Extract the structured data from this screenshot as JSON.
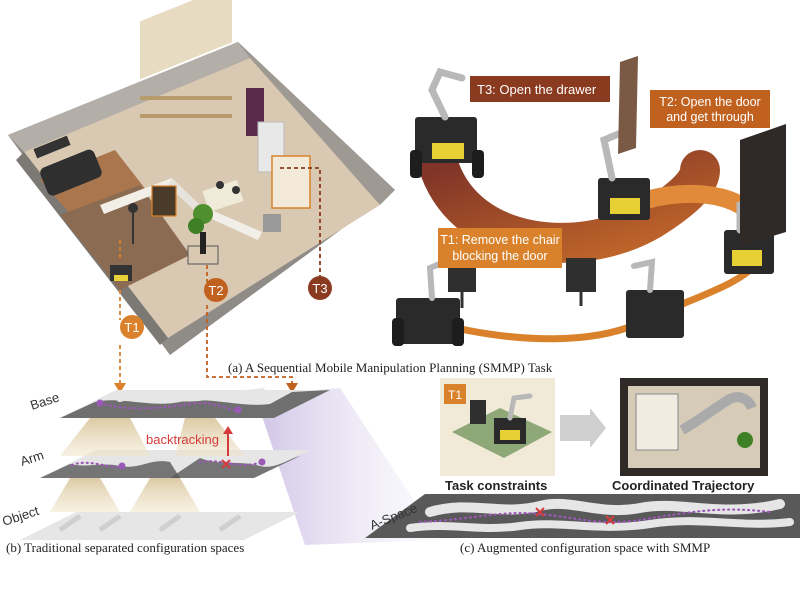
{
  "colors": {
    "orange": "#d9822b",
    "dark_orange": "#c0611f",
    "brown": "#8a3a1f",
    "dark_red": "#7a2a1c",
    "purple_dots": "#9b59b6",
    "slab_dark": "#595959",
    "slab_light": "#e6e6e6",
    "red_x": "#d63b3b"
  },
  "panel_a": {
    "caption": "(a) A Sequential Mobile Manipulation Planning (SMMP) Task",
    "markers": {
      "t1": "T1",
      "t2": "T2",
      "t3": "T3"
    },
    "task_labels": {
      "t3": "T3: Open the drawer",
      "t2": [
        "T2: Open the door",
        "and get through"
      ],
      "t1": [
        "T1: Remove the chair",
        "blocking the door"
      ]
    }
  },
  "panel_b": {
    "caption": "(b) Traditional separated configuration spaces",
    "layers": [
      "Base",
      "Arm",
      "Object"
    ],
    "backtracking": "backtracking"
  },
  "panel_c": {
    "caption": "(c) Augmented configuration space with SMMP",
    "marker": "T1",
    "task_constraints": "Task constraints",
    "coordinated_trajectory": "Coordinated Trajectory",
    "aspace_label": "A-Space"
  }
}
